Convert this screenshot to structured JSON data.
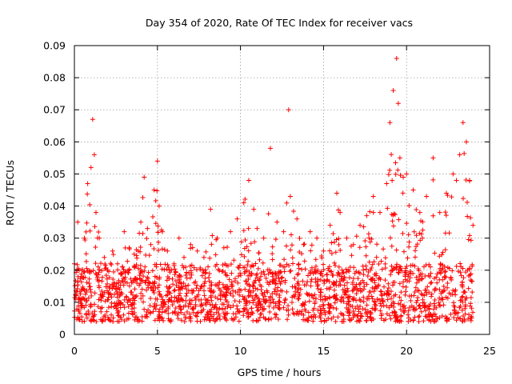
{
  "chart_data": {
    "type": "scatter",
    "title": "Day 354 of 2020, Rate Of TEC Index for receiver vacs",
    "xlabel": "GPS time / hours",
    "ylabel": "ROTI / TECUs",
    "xlim": [
      0,
      25
    ],
    "ylim": [
      0,
      0.09
    ],
    "x_ticks": [
      0,
      5,
      10,
      15,
      20,
      25
    ],
    "x_tick_labels": [
      "0",
      "5",
      "10",
      "15",
      "20",
      "25"
    ],
    "y_ticks": [
      0,
      0.01,
      0.02,
      0.03,
      0.04,
      0.05,
      0.06,
      0.07,
      0.08,
      0.09
    ],
    "y_tick_labels": [
      "0",
      "0.01",
      "0.02",
      "0.03",
      "0.04",
      "0.05",
      "0.06",
      "0.07",
      "0.08",
      "0.09"
    ],
    "grid": true,
    "legend": "none",
    "marker": "plus",
    "color": "#ff0000",
    "series": [
      {
        "x": [
          0.0,
          0.2,
          0.4,
          0.6,
          0.8,
          1.0,
          1.1,
          1.2,
          1.3,
          1.5,
          1.8,
          2.0,
          2.3,
          2.6,
          3.0,
          3.3,
          3.6,
          4.0,
          4.2,
          4.4,
          4.6,
          4.8,
          5.0,
          5.1,
          5.3,
          5.6,
          6.0,
          6.3,
          6.6,
          7.0,
          7.4,
          7.8,
          8.2,
          8.6,
          9.0,
          9.4,
          9.8,
          10.2,
          10.5,
          10.8,
          11.0,
          11.4,
          11.8,
          12.2,
          12.6,
          12.9,
          13.0,
          13.4,
          13.8,
          14.2,
          14.6,
          15.0,
          15.4,
          15.8,
          16.0,
          16.4,
          16.8,
          17.2,
          17.6,
          18.0,
          18.4,
          18.8,
          19.0,
          19.2,
          19.4,
          19.5,
          19.6,
          19.8,
          20.0,
          20.4,
          20.8,
          21.2,
          21.6,
          22.0,
          22.4,
          22.8,
          23.0,
          23.2,
          23.4,
          23.6,
          23.8,
          24.0
        ],
        "y": [
          0.022,
          0.035,
          0.018,
          0.03,
          0.047,
          0.052,
          0.067,
          0.056,
          0.038,
          0.03,
          0.024,
          0.02,
          0.026,
          0.022,
          0.032,
          0.027,
          0.025,
          0.035,
          0.049,
          0.033,
          0.028,
          0.045,
          0.054,
          0.04,
          0.032,
          0.026,
          0.022,
          0.03,
          0.024,
          0.028,
          0.026,
          0.024,
          0.039,
          0.03,
          0.027,
          0.032,
          0.036,
          0.041,
          0.048,
          0.039,
          0.033,
          0.03,
          0.058,
          0.035,
          0.032,
          0.07,
          0.043,
          0.036,
          0.028,
          0.032,
          0.03,
          0.026,
          0.034,
          0.044,
          0.038,
          0.03,
          0.028,
          0.034,
          0.037,
          0.043,
          0.038,
          0.047,
          0.066,
          0.076,
          0.086,
          0.072,
          0.055,
          0.049,
          0.05,
          0.045,
          0.038,
          0.043,
          0.055,
          0.038,
          0.044,
          0.05,
          0.048,
          0.056,
          0.066,
          0.06,
          0.048,
          0.034
        ]
      }
    ]
  }
}
